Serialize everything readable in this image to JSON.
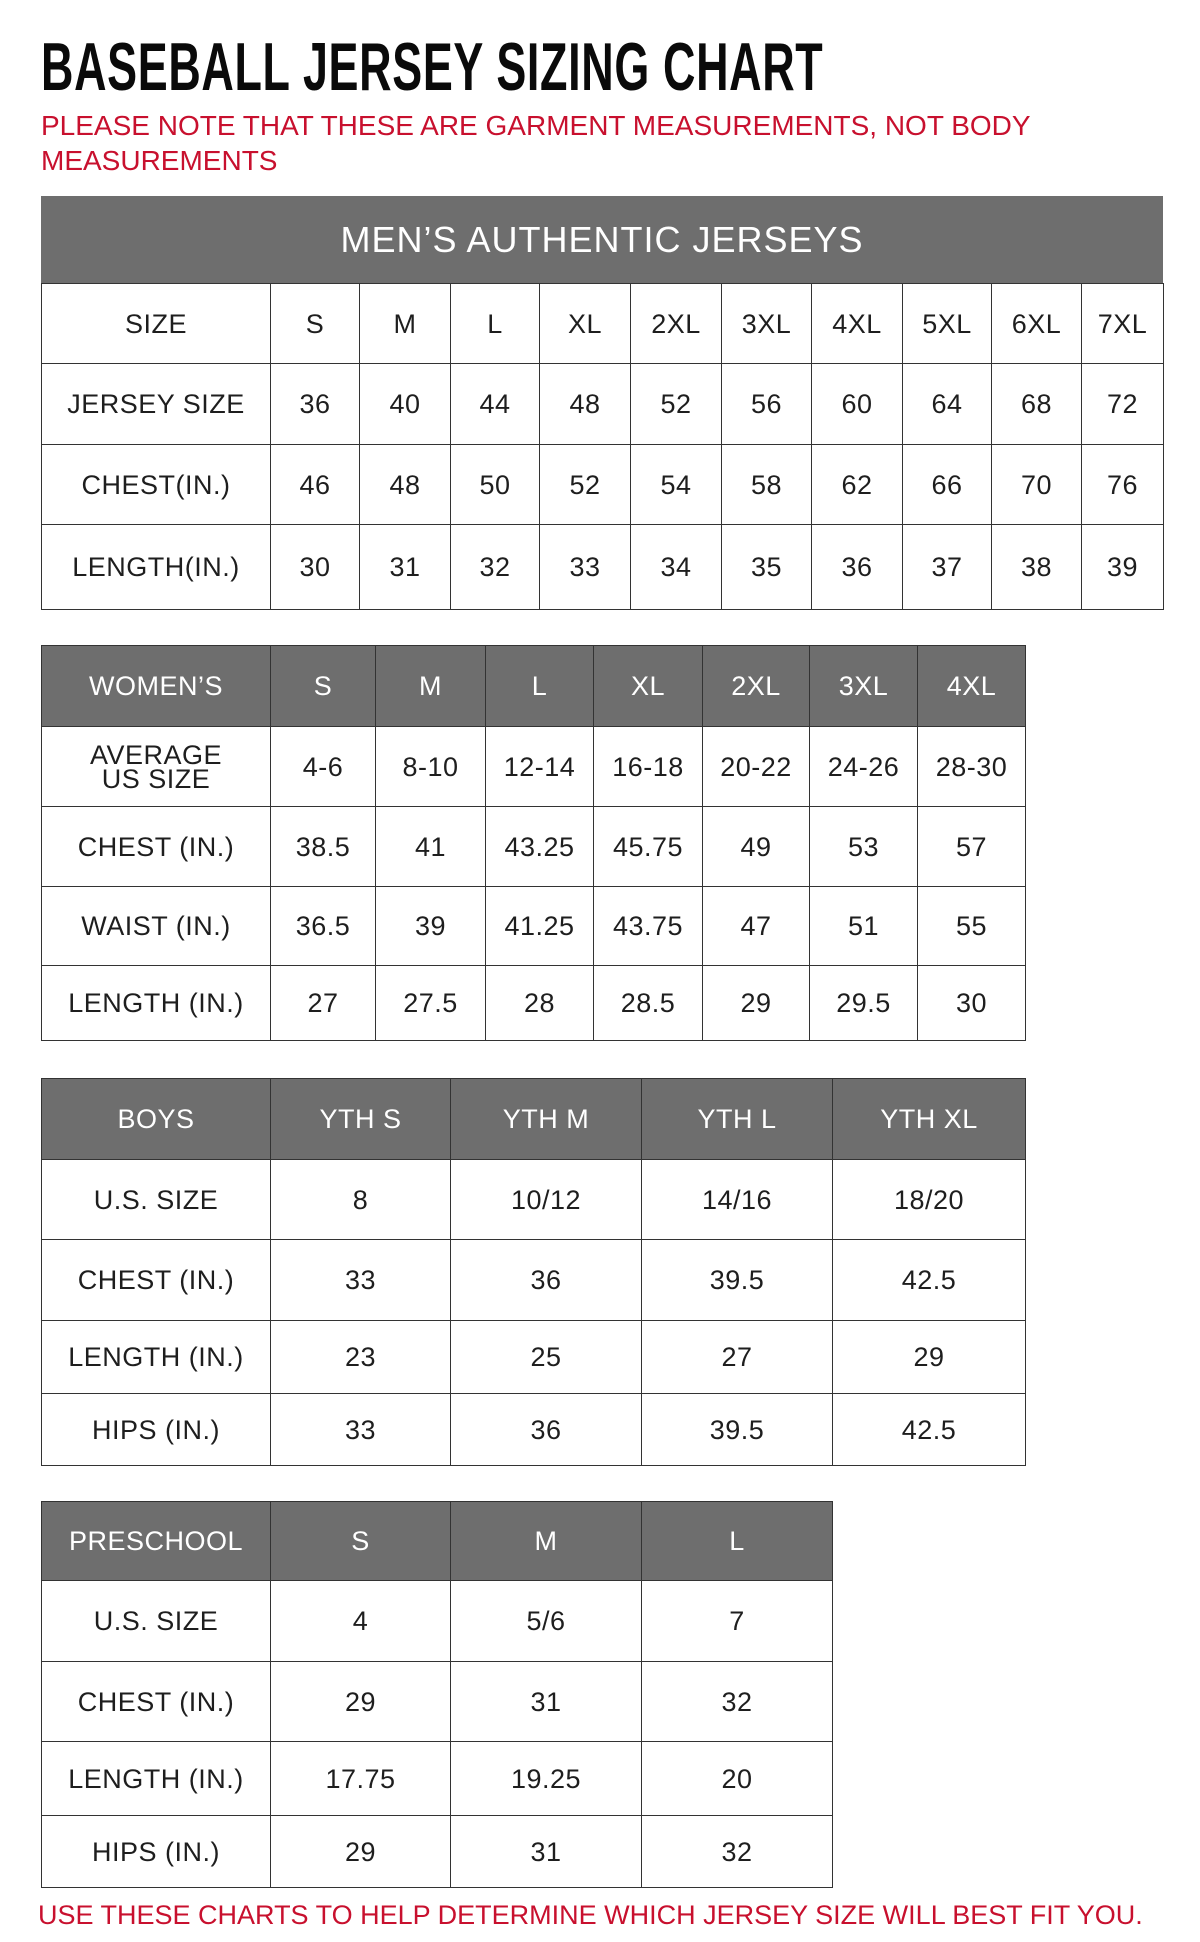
{
  "title": "BASEBALL JERSEY SIZING CHART",
  "note": "PLEASE NOTE THAT THESE ARE GARMENT MEASUREMENTS, NOT BODY MEASUREMENTS",
  "footer": "USE THESE CHARTS TO HELP DETERMINE WHICH JERSEY SIZE WILL BEST FIT YOU.",
  "colors": {
    "header_bg": "#6e6e6e",
    "note_red": "#c8102e"
  },
  "tables": {
    "men": {
      "title": "MEN’S AUTHENTIC JERSEYS",
      "rows": [
        [
          "SIZE",
          "S",
          "M",
          "L",
          "XL",
          "2XL",
          "3XL",
          "4XL",
          "5XL",
          "6XL",
          "7XL"
        ],
        [
          "JERSEY SIZE",
          "36",
          "40",
          "44",
          "48",
          "52",
          "56",
          "60",
          "64",
          "68",
          "72"
        ],
        [
          "CHEST(IN.)",
          "46",
          "48",
          "50",
          "52",
          "54",
          "58",
          "62",
          "66",
          "70",
          "76"
        ],
        [
          "LENGTH(IN.)",
          "30",
          "31",
          "32",
          "33",
          "34",
          "35",
          "36",
          "37",
          "38",
          "39"
        ]
      ]
    },
    "women": {
      "header": [
        "WOMEN’S",
        "S",
        "M",
        "L",
        "XL",
        "2XL",
        "3XL",
        "4XL"
      ],
      "rows": [
        [
          "AVERAGE US SIZE",
          "4-6",
          "8-10",
          "12-14",
          "16-18",
          "20-22",
          "24-26",
          "28-30"
        ],
        [
          "CHEST (IN.)",
          "38.5",
          "41",
          "43.25",
          "45.75",
          "49",
          "53",
          "57"
        ],
        [
          "WAIST (IN.)",
          "36.5",
          "39",
          "41.25",
          "43.75",
          "47",
          "51",
          "55"
        ],
        [
          "LENGTH (IN.)",
          "27",
          "27.5",
          "28",
          "28.5",
          "29",
          "29.5",
          "30"
        ]
      ]
    },
    "boys": {
      "header": [
        "BOYS",
        "YTH S",
        "YTH M",
        "YTH L",
        "YTH XL"
      ],
      "rows": [
        [
          "U.S. SIZE",
          "8",
          "10/12",
          "14/16",
          "18/20"
        ],
        [
          "CHEST (IN.)",
          "33",
          "36",
          "39.5",
          "42.5"
        ],
        [
          "LENGTH (IN.)",
          "23",
          "25",
          "27",
          "29"
        ],
        [
          "HIPS (IN.)",
          "33",
          "36",
          "39.5",
          "42.5"
        ]
      ]
    },
    "preschool": {
      "header": [
        "PRESCHOOL",
        "S",
        "M",
        "L"
      ],
      "rows": [
        [
          "U.S. SIZE",
          "4",
          "5/6",
          "7"
        ],
        [
          "CHEST (IN.)",
          "29",
          "31",
          "32"
        ],
        [
          "LENGTH (IN.)",
          "17.75",
          "19.25",
          "20"
        ],
        [
          "HIPS (IN.)",
          "29",
          "31",
          "32"
        ]
      ]
    }
  }
}
